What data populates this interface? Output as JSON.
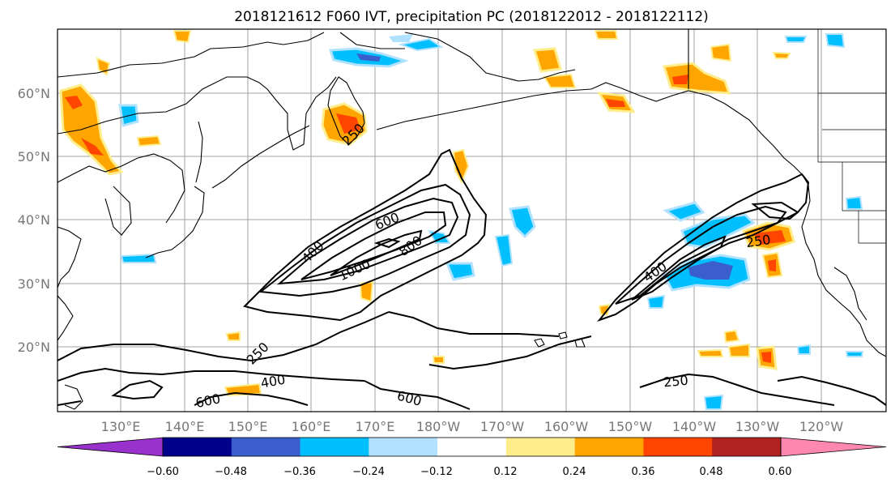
{
  "figure": {
    "title": "2018121612 F060 IVT, precipitation PC (2018122012 - 2018122112)"
  },
  "map": {
    "lat_labels": [
      "60°N",
      "50°N",
      "40°N",
      "30°N",
      "20°N"
    ],
    "lon_labels": [
      "130°E",
      "140°E",
      "150°E",
      "160°E",
      "170°E",
      "180°W",
      "170°W",
      "160°W",
      "150°W",
      "140°W",
      "130°W",
      "120°W"
    ],
    "gridlines": true
  },
  "ivt_contours": {
    "levels": [
      250,
      400,
      600,
      800,
      1000
    ],
    "labels": [
      {
        "text": "600",
        "id": "west-600"
      },
      {
        "text": "400",
        "id": "west-400"
      },
      {
        "text": "1000",
        "id": "west-1000"
      },
      {
        "text": "800",
        "id": "west-800"
      },
      {
        "text": "250",
        "id": "south-250"
      },
      {
        "text": "400",
        "id": "south-400"
      },
      {
        "text": "600",
        "id": "sw-600"
      },
      {
        "text": "600",
        "id": "south-600"
      },
      {
        "text": "250",
        "id": "east-250a"
      },
      {
        "text": "400",
        "id": "east-400"
      },
      {
        "text": "250",
        "id": "east-250b"
      },
      {
        "text": "250",
        "id": "kamchatka-250"
      }
    ]
  },
  "colorbar": {
    "colors": [
      "#9932CC",
      "#00008B",
      "#3A5FCD",
      "#00BFFF",
      "#B0E2FF",
      "#FFFFFF",
      "#FFEC8B",
      "#FFA500",
      "#FF4500",
      "#B22222",
      "#FF88B0"
    ],
    "ticks": [
      "−0.60",
      "−0.48",
      "−0.36",
      "−0.24",
      "−0.12",
      "0.12",
      "0.24",
      "0.36",
      "0.48",
      "0.60"
    ]
  }
}
